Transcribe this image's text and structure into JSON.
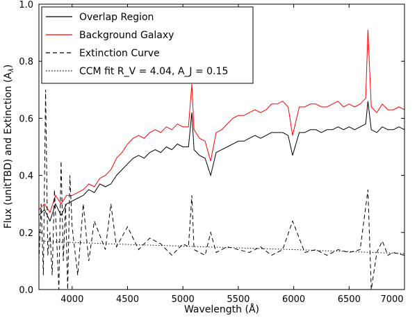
{
  "chart_data": {
    "type": "line",
    "title": "",
    "xlabel": "Wavelength (Å)",
    "ylabel": "Flux (unitTBD) and Extinction (A_λ)",
    "xlim": [
      3700,
      7000
    ],
    "ylim": [
      0.0,
      1.0
    ],
    "grid": false,
    "legend_position": "top-left",
    "x_ticks": [
      {
        "value": 4000,
        "label": "4000"
      },
      {
        "value": 4500,
        "label": "4500"
      },
      {
        "value": 5000,
        "label": "5000"
      },
      {
        "value": 5500,
        "label": "5500"
      },
      {
        "value": 6000,
        "label": "6000"
      },
      {
        "value": 6500,
        "label": "6500"
      },
      {
        "value": 7000,
        "label": "7000"
      }
    ],
    "y_ticks": [
      {
        "value": 0.0,
        "label": "0.0"
      },
      {
        "value": 0.2,
        "label": "0.2"
      },
      {
        "value": 0.4,
        "label": "0.4"
      },
      {
        "value": 0.6,
        "label": "0.6"
      },
      {
        "value": 0.8,
        "label": "0.8"
      },
      {
        "value": 1.0,
        "label": "1.0"
      }
    ],
    "series": [
      {
        "name": "Overlap Region",
        "color": "#000000",
        "style": "solid",
        "x": [
          3700,
          3750,
          3800,
          3850,
          3900,
          3950,
          4000,
          4050,
          4100,
          4150,
          4200,
          4250,
          4300,
          4350,
          4400,
          4450,
          4500,
          4550,
          4600,
          4650,
          4700,
          4750,
          4800,
          4850,
          4900,
          4950,
          5000,
          5050,
          5080,
          5100,
          5150,
          5200,
          5250,
          5300,
          5350,
          5400,
          5450,
          5500,
          5550,
          5600,
          5650,
          5700,
          5750,
          5800,
          5850,
          5900,
          5950,
          5990,
          6050,
          6100,
          6150,
          6200,
          6250,
          6300,
          6350,
          6400,
          6450,
          6500,
          6550,
          6600,
          6650,
          6670,
          6700,
          6750,
          6800,
          6850,
          6900,
          6950,
          7000
        ],
        "y": [
          0.26,
          0.28,
          0.24,
          0.3,
          0.26,
          0.3,
          0.31,
          0.32,
          0.33,
          0.35,
          0.34,
          0.37,
          0.36,
          0.37,
          0.4,
          0.42,
          0.44,
          0.46,
          0.47,
          0.46,
          0.48,
          0.49,
          0.48,
          0.5,
          0.49,
          0.51,
          0.5,
          0.5,
          0.62,
          0.49,
          0.47,
          0.46,
          0.4,
          0.48,
          0.49,
          0.5,
          0.51,
          0.52,
          0.52,
          0.53,
          0.54,
          0.53,
          0.54,
          0.55,
          0.55,
          0.55,
          0.54,
          0.47,
          0.55,
          0.55,
          0.56,
          0.56,
          0.55,
          0.56,
          0.56,
          0.57,
          0.56,
          0.57,
          0.56,
          0.57,
          0.58,
          0.66,
          0.56,
          0.55,
          0.57,
          0.56,
          0.56,
          0.57,
          0.56
        ]
      },
      {
        "name": "Background Galaxy",
        "color": "#ff0000",
        "style": "solid",
        "x": [
          3700,
          3750,
          3800,
          3850,
          3900,
          3950,
          4000,
          4050,
          4100,
          4150,
          4200,
          4250,
          4300,
          4350,
          4400,
          4450,
          4500,
          4550,
          4600,
          4650,
          4700,
          4750,
          4800,
          4850,
          4900,
          4950,
          5000,
          5050,
          5080,
          5100,
          5150,
          5200,
          5250,
          5300,
          5350,
          5400,
          5450,
          5500,
          5550,
          5600,
          5650,
          5700,
          5750,
          5800,
          5850,
          5900,
          5950,
          5990,
          6050,
          6100,
          6150,
          6200,
          6250,
          6300,
          6350,
          6400,
          6450,
          6500,
          6550,
          6600,
          6650,
          6670,
          6700,
          6750,
          6800,
          6850,
          6900,
          6950,
          7000
        ],
        "y": [
          0.28,
          0.3,
          0.27,
          0.33,
          0.3,
          0.33,
          0.33,
          0.34,
          0.35,
          0.37,
          0.36,
          0.39,
          0.4,
          0.42,
          0.46,
          0.48,
          0.51,
          0.53,
          0.54,
          0.53,
          0.55,
          0.56,
          0.55,
          0.57,
          0.56,
          0.58,
          0.57,
          0.57,
          0.72,
          0.56,
          0.53,
          0.52,
          0.45,
          0.55,
          0.56,
          0.58,
          0.6,
          0.61,
          0.61,
          0.62,
          0.63,
          0.62,
          0.63,
          0.65,
          0.65,
          0.66,
          0.64,
          0.54,
          0.64,
          0.64,
          0.65,
          0.65,
          0.64,
          0.64,
          0.65,
          0.66,
          0.64,
          0.65,
          0.64,
          0.65,
          0.67,
          0.91,
          0.64,
          0.62,
          0.65,
          0.63,
          0.63,
          0.64,
          0.63
        ]
      },
      {
        "name": "Extinction Curve",
        "color": "#000000",
        "style": "dashed",
        "x": [
          3700,
          3720,
          3740,
          3760,
          3780,
          3800,
          3820,
          3840,
          3860,
          3880,
          3900,
          3920,
          3940,
          3960,
          3980,
          4000,
          4050,
          4100,
          4150,
          4200,
          4300,
          4350,
          4400,
          4500,
          4600,
          4700,
          4800,
          4900,
          5000,
          5050,
          5080,
          5100,
          5200,
          5250,
          5300,
          5400,
          5500,
          5600,
          5700,
          5800,
          5900,
          5990,
          6100,
          6200,
          6300,
          6400,
          6500,
          6600,
          6670,
          6700,
          6750,
          6800,
          6850,
          6900,
          7000
        ],
        "y": [
          0.1,
          0.3,
          0.05,
          0.7,
          0.12,
          0.2,
          0.05,
          0.35,
          0.18,
          0.0,
          0.45,
          0.1,
          0.3,
          0.0,
          0.4,
          0.22,
          0.05,
          0.3,
          0.1,
          0.24,
          0.14,
          0.3,
          0.15,
          0.22,
          0.14,
          0.18,
          0.16,
          0.12,
          0.16,
          0.15,
          0.33,
          0.14,
          0.12,
          0.2,
          0.13,
          0.15,
          0.14,
          0.13,
          0.15,
          0.12,
          0.14,
          0.24,
          0.13,
          0.14,
          0.12,
          0.14,
          0.13,
          0.14,
          0.35,
          0.0,
          0.13,
          0.17,
          0.12,
          0.13,
          0.12
        ]
      },
      {
        "name": "CCM fit R_V = 4.04, A_J = 0.15",
        "color": "#000000",
        "style": "dotted",
        "x": [
          3700,
          3800,
          3900,
          4000,
          4500,
          5000,
          5500,
          6000,
          6500,
          7000
        ],
        "y": [
          0.17,
          0.168,
          0.166,
          0.165,
          0.158,
          0.152,
          0.146,
          0.14,
          0.133,
          0.126
        ]
      }
    ]
  },
  "legend": {
    "items": [
      {
        "label": "Overlap Region"
      },
      {
        "label": "Background Galaxy"
      },
      {
        "label": "Extinction Curve"
      },
      {
        "label": "CCM fit R_V = 4.04, A_J = 0.15"
      }
    ]
  }
}
